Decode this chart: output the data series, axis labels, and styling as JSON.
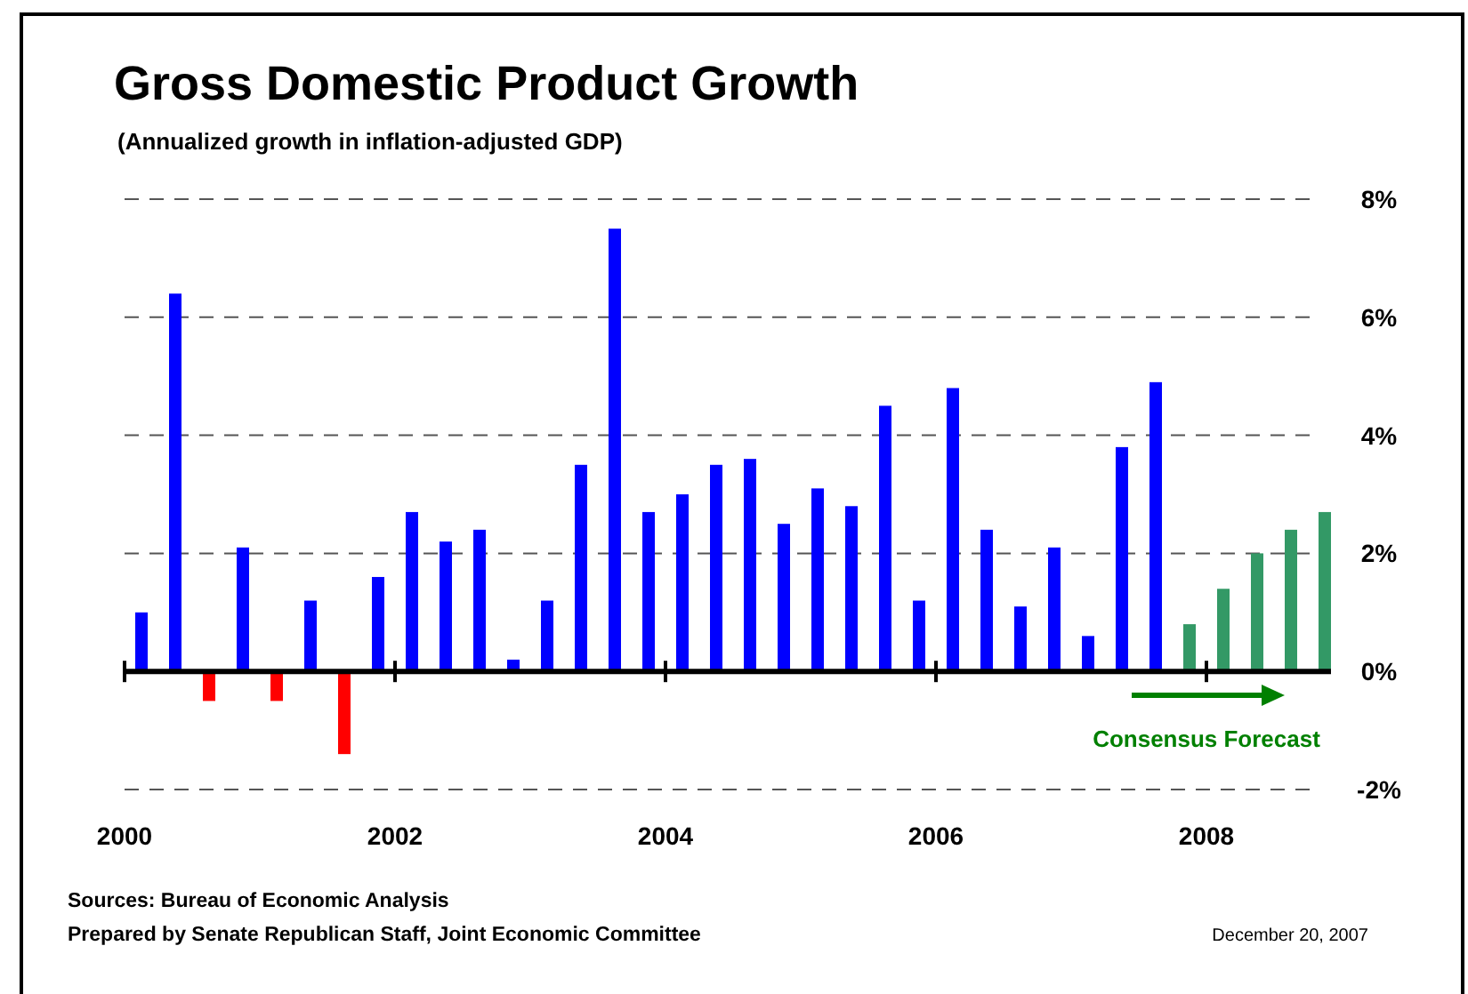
{
  "chart_data": {
    "type": "bar",
    "title": "Gross Domestic Product Growth",
    "subtitle": "(Annualized growth in inflation-adjusted GDP)",
    "x": [
      2000.125,
      2000.375,
      2000.625,
      2000.875,
      2001.125,
      2001.375,
      2001.625,
      2001.875,
      2002.125,
      2002.375,
      2002.625,
      2002.875,
      2003.125,
      2003.375,
      2003.625,
      2003.875,
      2004.125,
      2004.375,
      2004.625,
      2004.875,
      2005.125,
      2005.375,
      2005.625,
      2005.875,
      2006.125,
      2006.375,
      2006.625,
      2006.875,
      2007.125,
      2007.375,
      2007.625,
      2007.875,
      2008.125,
      2008.375,
      2008.625,
      2008.875
    ],
    "values": [
      1.0,
      6.4,
      -0.5,
      2.1,
      -0.5,
      1.2,
      -1.4,
      1.6,
      2.7,
      2.2,
      2.4,
      0.2,
      1.2,
      3.5,
      7.5,
      2.7,
      3.0,
      3.5,
      3.6,
      2.5,
      3.1,
      2.8,
      4.5,
      1.2,
      4.8,
      2.4,
      1.1,
      2.1,
      0.6,
      3.8,
      4.9,
      0.8,
      1.4,
      2.0,
      2.4,
      2.7
    ],
    "colors": [
      "#0000ff",
      "#0000ff",
      "#ff0000",
      "#0000ff",
      "#ff0000",
      "#0000ff",
      "#ff0000",
      "#0000ff",
      "#0000ff",
      "#0000ff",
      "#0000ff",
      "#0000ff",
      "#0000ff",
      "#0000ff",
      "#0000ff",
      "#0000ff",
      "#0000ff",
      "#0000ff",
      "#0000ff",
      "#0000ff",
      "#0000ff",
      "#0000ff",
      "#0000ff",
      "#0000ff",
      "#0000ff",
      "#0000ff",
      "#0000ff",
      "#0000ff",
      "#0000ff",
      "#0000ff",
      "#0000ff",
      "#339966",
      "#339966",
      "#339966",
      "#339966",
      "#339966"
    ],
    "xlim": [
      2000,
      2009
    ],
    "xticks": [
      2000,
      2002,
      2004,
      2006,
      2008
    ],
    "ylim": [
      -2,
      8
    ],
    "yticks": [
      {
        "value": -2,
        "label": "-2%"
      },
      {
        "value": 0,
        "label": "0%"
      },
      {
        "value": 2,
        "label": "2%"
      },
      {
        "value": 4,
        "label": "4%"
      },
      {
        "value": 6,
        "label": "6%"
      },
      {
        "value": 8,
        "label": "8%"
      }
    ],
    "grid": "y",
    "annotations": [
      "Consensus Forecast",
      "Sources: Bureau of Economic Analysis",
      "Prepared by Senate Republican Staff, Joint Economic Committee",
      "December 20, 2007"
    ]
  }
}
